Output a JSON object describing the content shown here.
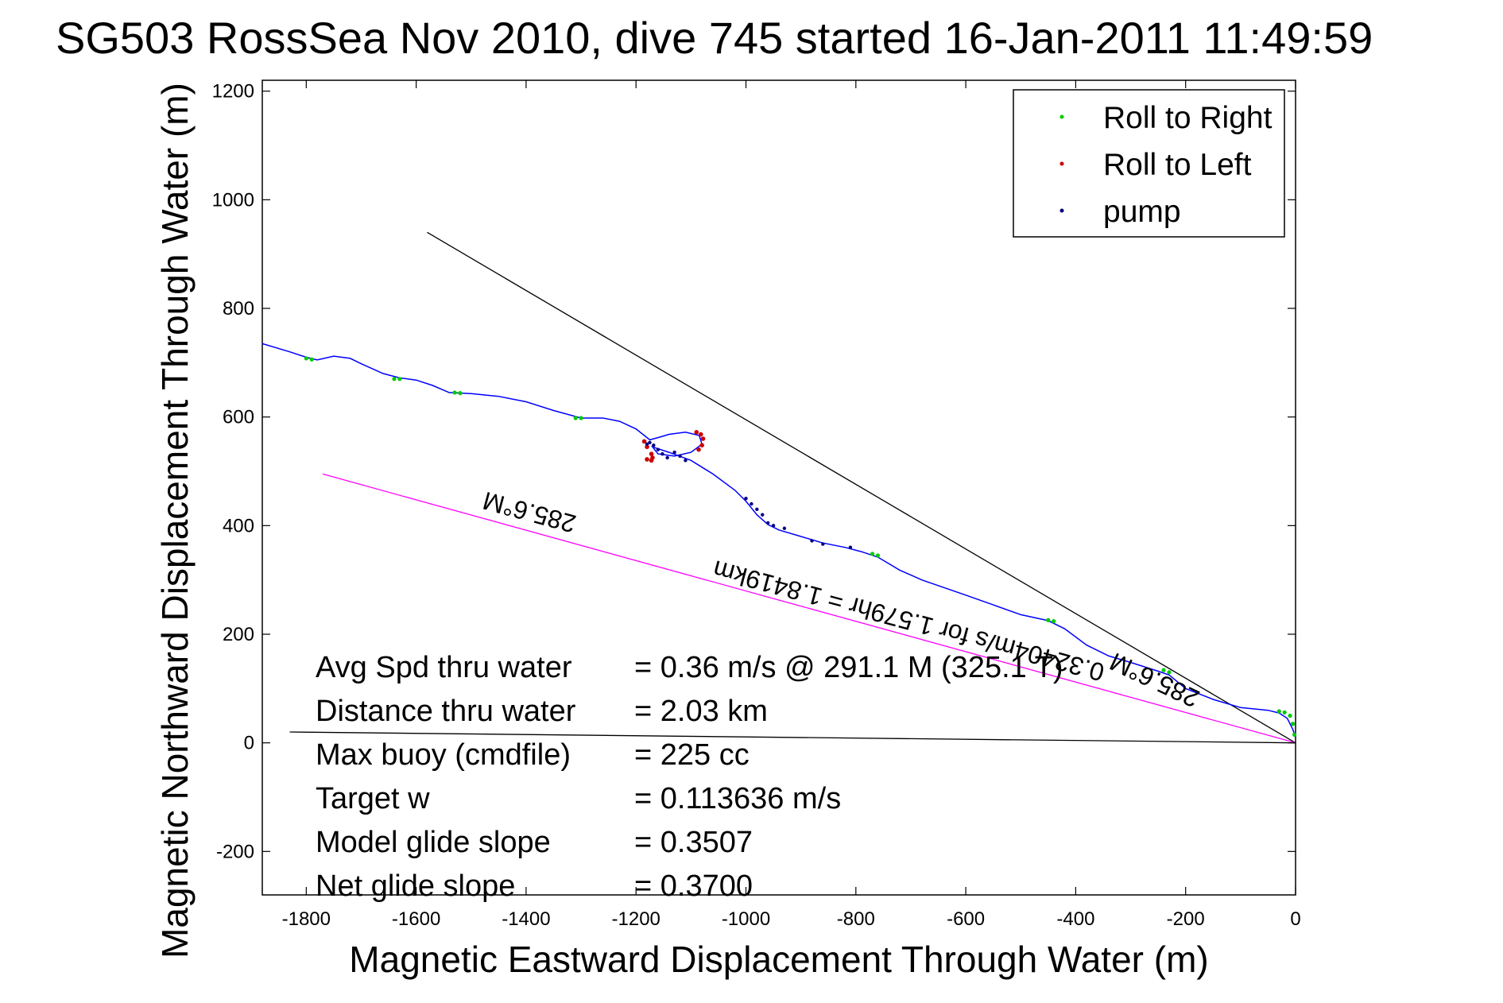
{
  "chart_data": {
    "type": "line",
    "title": "SG503 RossSea Nov 2010, dive 745 started 16-Jan-2011 11:49:59",
    "xlabel": "Magnetic Eastward Displacement Through Water (m)",
    "ylabel": "Magnetic Northward Displacement Through Water (m)",
    "xlim": [
      -1880,
      0
    ],
    "ylim": [
      -280,
      1220
    ],
    "xticks": [
      -1800,
      -1600,
      -1400,
      -1200,
      -1000,
      -800,
      -600,
      -400,
      -200,
      0
    ],
    "yticks": [
      -200,
      0,
      200,
      400,
      600,
      800,
      1000,
      1200
    ],
    "grid": false,
    "legend_position": "top-right",
    "legend": [
      {
        "label": "Roll to Right",
        "color": "#00cc00"
      },
      {
        "label": "Roll to Left",
        "color": "#cc0000"
      },
      {
        "label": "pump",
        "color": "#000080"
      }
    ],
    "track": {
      "color": "#0000ff",
      "x": [
        -1880,
        -1830,
        -1800,
        -1780,
        -1750,
        -1720,
        -1700,
        -1660,
        -1630,
        -1600,
        -1570,
        -1540,
        -1500,
        -1450,
        -1400,
        -1350,
        -1300,
        -1260,
        -1230,
        -1200,
        -1175,
        -1160,
        -1140,
        -1110,
        -1085,
        -1080,
        -1100,
        -1130,
        -1160,
        -1170,
        -1140,
        -1100,
        -1060,
        -1020,
        -1000,
        -980,
        -960,
        -940,
        -900,
        -860,
        -820,
        -790,
        -760,
        -720,
        -680,
        -600,
        -550,
        -500,
        -450,
        -420,
        -380,
        -340,
        -300,
        -250,
        -230,
        -200,
        -150,
        -100,
        -50,
        -30,
        -15,
        -5,
        0
      ],
      "y": [
        735,
        720,
        710,
        705,
        712,
        708,
        698,
        680,
        672,
        668,
        658,
        645,
        643,
        638,
        628,
        612,
        598,
        598,
        592,
        578,
        558,
        562,
        568,
        572,
        566,
        550,
        535,
        528,
        532,
        545,
        535,
        520,
        495,
        465,
        445,
        420,
        402,
        392,
        380,
        368,
        360,
        352,
        342,
        318,
        300,
        272,
        254,
        236,
        225,
        210,
        180,
        160,
        148,
        132,
        125,
        100,
        80,
        65,
        60,
        55,
        45,
        25,
        10
      ]
    },
    "roll_right_points": {
      "x": [
        -1800,
        -1790,
        -1640,
        -1630,
        -1530,
        -1520,
        -1310,
        -1300,
        -770,
        -760,
        -450,
        -440,
        -240,
        -230,
        -30,
        -20,
        -10,
        -5,
        -2
      ],
      "y": [
        708,
        706,
        670,
        670,
        645,
        644,
        598,
        598,
        348,
        345,
        226,
        224,
        134,
        130,
        58,
        56,
        50,
        35,
        15
      ]
    },
    "roll_left_points": {
      "x": [
        -1185,
        -1180,
        -1172,
        -1170,
        -1172,
        -1180,
        -1090,
        -1082,
        -1078,
        -1080,
        -1086
      ],
      "y": [
        555,
        545,
        532,
        525,
        520,
        522,
        572,
        568,
        560,
        548,
        540
      ]
    },
    "pump_points": {
      "x": [
        -1180,
        -1175,
        -1168,
        -1160,
        -1152,
        -1143,
        -1130,
        -1120,
        -1110,
        -1000,
        -990,
        -980,
        -970,
        -960,
        -950,
        -930,
        -880,
        -860,
        -810
      ],
      "y": [
        550,
        553,
        548,
        540,
        532,
        525,
        535,
        528,
        520,
        450,
        440,
        430,
        420,
        405,
        400,
        395,
        372,
        366,
        360
      ]
    },
    "lines": {
      "black_heading": {
        "color": "#000000",
        "x": [
          -1580,
          0
        ],
        "y": [
          940,
          0
        ]
      },
      "magenta_heading": {
        "color": "#ff00ff",
        "x": [
          -1770,
          0
        ],
        "y": [
          495,
          0
        ]
      },
      "base_line": {
        "color": "#000000",
        "x": [
          -1830,
          0
        ],
        "y": [
          20,
          0
        ]
      }
    },
    "annotations": [
      {
        "text": "285.6°M",
        "x": -1390,
        "y": 440,
        "rotate": 195
      },
      {
        "text": "0.32404m/s for 1.579hr = 1.8419km",
        "x": -700,
        "y": 240,
        "rotate": 195
      },
      {
        "text": "285.6°M",
        "x": -250,
        "y": 130,
        "rotate": 205
      }
    ],
    "stats": [
      {
        "label": "Avg Spd thru water",
        "value": "=  0.36 m/s @ 291.1   M (325.1   T)"
      },
      {
        "label": "Distance thru water",
        "value": "=  2.03 km"
      },
      {
        "label": "Max buoy (cmdfile)",
        "value": "= 225 cc"
      },
      {
        "label": "Target w",
        "value": "= 0.113636 m/s"
      },
      {
        "label": "Model glide slope",
        "value": "= 0.3507"
      },
      {
        "label": "Net glide slope",
        "value": "= 0.3700"
      }
    ]
  }
}
